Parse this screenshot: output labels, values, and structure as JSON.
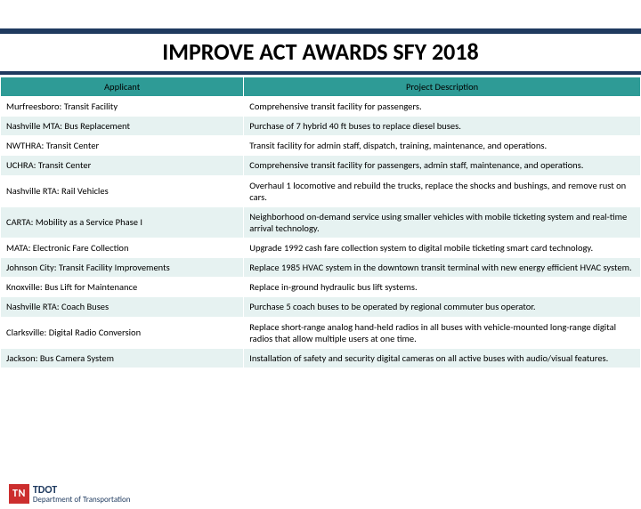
{
  "title": "IMPROVE ACT AWARDS  SFY 2018",
  "columns": [
    "Applicant",
    "Project Description"
  ],
  "rows": [
    [
      "Murfreesboro: Transit Facility",
      "Comprehensive transit facility for passengers."
    ],
    [
      "Nashville MTA: Bus Replacement",
      "Purchase of 7 hybrid 40 ft buses to replace diesel buses."
    ],
    [
      "NWTHRA: Transit Center",
      "Transit facility for admin staff, dispatch, training, maintenance, and operations."
    ],
    [
      "UCHRA: Transit Center",
      "Comprehensive transit facility for passengers, admin staff, maintenance, and operations."
    ],
    [
      "Nashville RTA: Rail Vehicles",
      "Overhaul 1 locomotive and rebuild the trucks, replace the shocks and bushings, and remove rust on cars."
    ],
    [
      "CARTA: Mobility as a Service Phase I",
      "Neighborhood on-demand service using smaller vehicles with mobile ticketing system and real-time arrival technology."
    ],
    [
      "MATA: Electronic Fare Collection",
      "Upgrade 1992 cash fare collection system to digital mobile ticketing smart card technology."
    ],
    [
      "Johnson City: Transit Facility Improvements",
      "Replace 1985 HVAC system in the downtown transit terminal with new energy efficient HVAC system."
    ],
    [
      "Knoxville: Bus Lift for Maintenance",
      "Replace in-ground hydraulic bus lift systems."
    ],
    [
      "Nashville RTA: Coach Buses",
      "Purchase 5 coach buses to be operated by regional commuter bus operator."
    ],
    [
      "Clarksville: Digital Radio Conversion",
      "Replace short-range analog hand-held radios in all buses with vehicle-mounted long-range digital radios that allow multiple users at one time."
    ],
    [
      "Jackson: Bus Camera System",
      "Installation of safety and security digital cameras on all active buses with audio/visual features."
    ]
  ],
  "logo": {
    "tn": "TN",
    "tdot": "TDOT",
    "dept": "Department of\nTransportation"
  },
  "colors": {
    "header_bar": "#1f3a5f",
    "th_bg": "#2e9b96",
    "row_alt": "#e6f2f1",
    "tn_red": "#cc2e2e"
  }
}
